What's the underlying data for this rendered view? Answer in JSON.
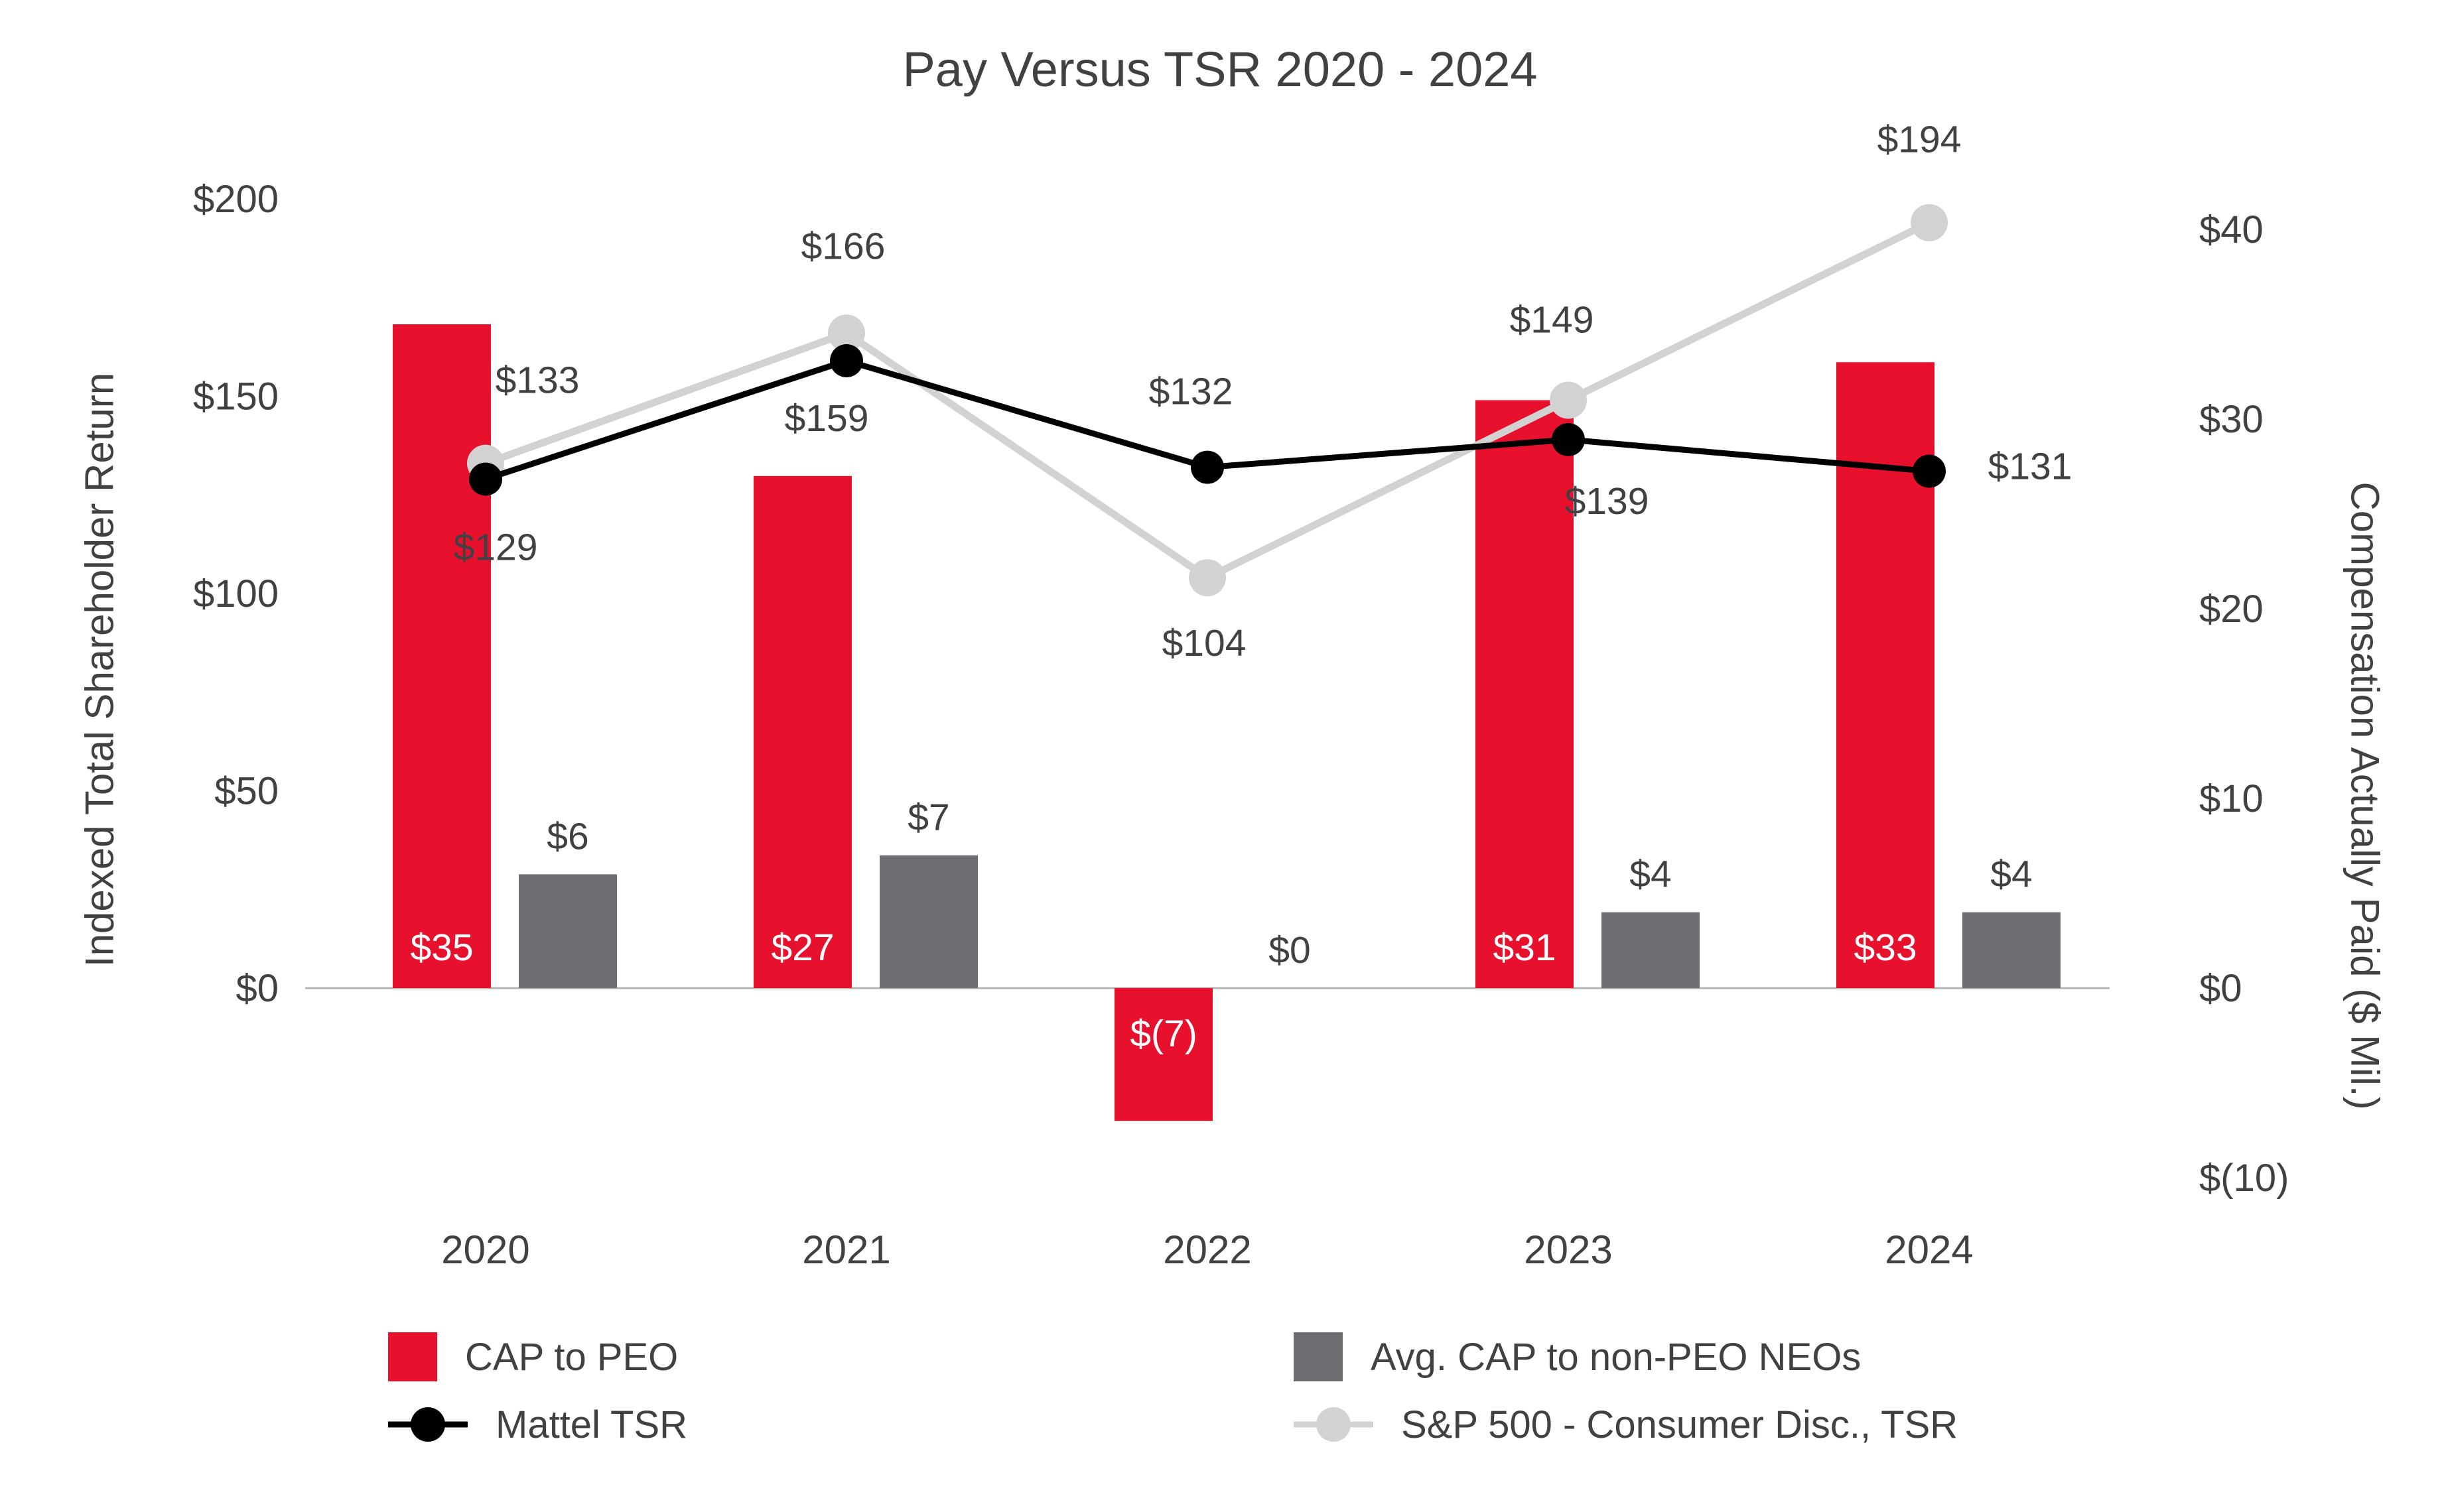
{
  "title": "Pay Versus TSR 2020 - 2024",
  "chart_data": {
    "type": "combo-bar-line",
    "categories": [
      "2020",
      "2021",
      "2022",
      "2023",
      "2024"
    ],
    "series": [
      {
        "name": "CAP to PEO",
        "kind": "bar",
        "axis": "right",
        "color": "#e8112d",
        "values": [
          35,
          27,
          -7,
          31,
          33
        ],
        "labels": [
          "$35",
          "$27",
          "$(7)",
          "$31",
          "$33"
        ]
      },
      {
        "name": "Avg. CAP to non-PEO NEOs",
        "kind": "bar",
        "axis": "right",
        "color": "#6d6e71",
        "values": [
          6,
          7,
          0,
          4,
          4
        ],
        "labels": [
          "$6",
          "$7",
          "$0",
          "$4",
          "$4"
        ]
      },
      {
        "name": "Mattel TSR",
        "kind": "line",
        "axis": "left",
        "color": "#000000",
        "values": [
          129,
          159,
          132,
          139,
          131
        ],
        "labels": [
          "$129",
          "$159",
          "$132",
          "$139",
          "$131"
        ],
        "label_offsets": [
          [
            15,
            122
          ],
          [
            -30,
            106
          ],
          [
            -25,
            -95
          ],
          [
            58,
            112
          ],
          [
            152,
            12
          ]
        ]
      },
      {
        "name": "S&P 500 - Consumer Disc., TSR",
        "kind": "line",
        "axis": "left",
        "color": "#d2d2d2",
        "values": [
          133,
          166,
          104,
          149,
          194
        ],
        "labels": [
          "$133",
          "$166",
          "$104",
          "$149",
          "$194"
        ],
        "label_offsets": [
          [
            78,
            -106
          ],
          [
            -5,
            -112
          ],
          [
            -5,
            118
          ],
          [
            -25,
            -102
          ],
          [
            -15,
            -106
          ]
        ]
      }
    ],
    "left_axis": {
      "title": "Indexed Total Shareholder Return",
      "range": [
        0,
        200
      ],
      "ticks": [
        0,
        50,
        100,
        150,
        200
      ],
      "tick_labels": [
        "$0",
        "$50",
        "$100",
        "$150",
        "$200"
      ]
    },
    "right_axis": {
      "title": "Compensation Actually Paid ($ Mil.)",
      "range": [
        -10,
        40
      ],
      "ticks": [
        -10,
        0,
        10,
        20,
        30,
        40
      ],
      "tick_labels": [
        "$(10)",
        "$0",
        "$10",
        "$20",
        "$30",
        "$40"
      ]
    },
    "legend": {
      "position": "bottom",
      "entries": [
        {
          "label": "CAP to PEO",
          "marker": "square",
          "series": 0
        },
        {
          "label": "Avg. CAP to non-PEO NEOs",
          "marker": "square",
          "series": 1
        },
        {
          "label": "Mattel TSR",
          "marker": "line-dot",
          "series": 2
        },
        {
          "label": "S&P 500 - Consumer Disc., TSR",
          "marker": "line-dot",
          "series": 3
        }
      ]
    },
    "grid": "off",
    "text_color": "#414042",
    "baseline_color": "#b5b5b5"
  }
}
